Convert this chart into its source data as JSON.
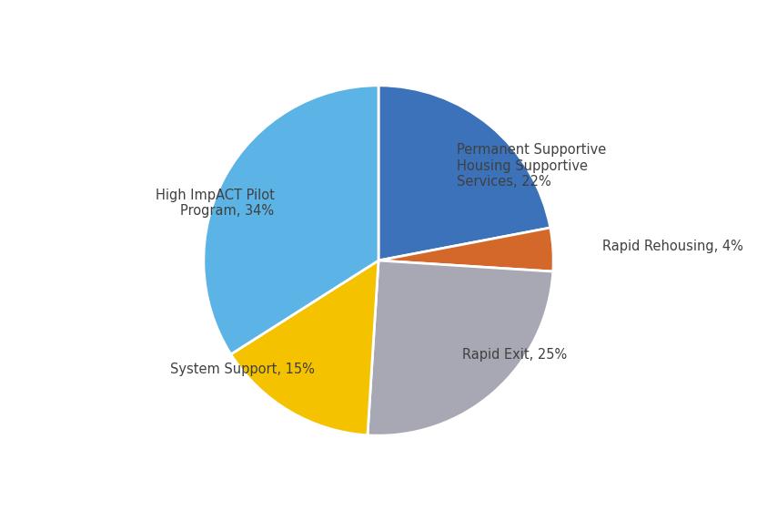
{
  "labels": [
    "Permanent Supportive\nHousing Supportive\nServices, 22%",
    "Rapid Rehousing, 4%",
    "Rapid Exit, 25%",
    "System Support, 15%",
    "High ImpACT Pilot\nProgram, 34%"
  ],
  "values": [
    22,
    4,
    25,
    15,
    34
  ],
  "colors": [
    "#3B72B9",
    "#D4682A",
    "#A8A8B5",
    "#F5C200",
    "#5BB4E5"
  ],
  "background_color": "#FFFFFF",
  "startangle": 90,
  "figsize": [
    8.32,
    5.72
  ],
  "dpi": 100,
  "label_fontsize": 10.5,
  "label_color": "#404040"
}
